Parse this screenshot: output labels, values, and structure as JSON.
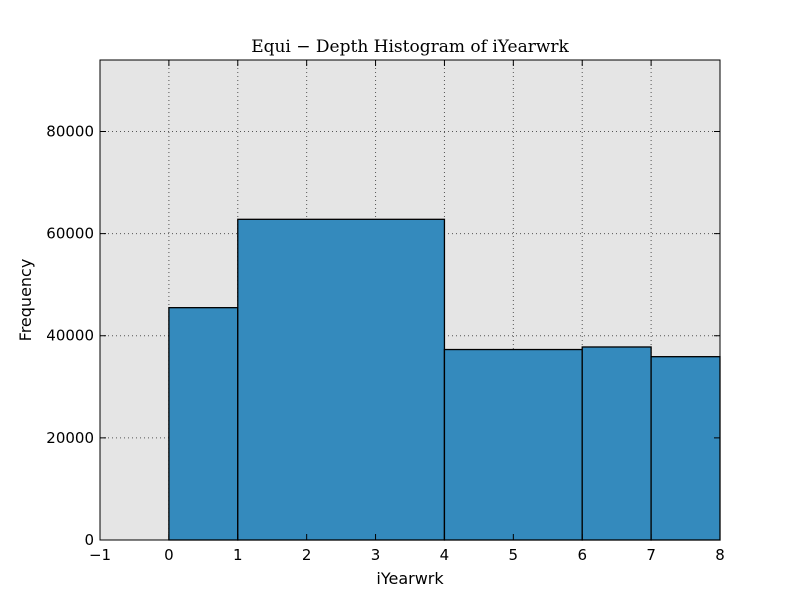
{
  "chart_data": {
    "type": "bar",
    "title": "Equi − Depth Histogram of iYearwrk",
    "xlabel": "iYearwrk",
    "ylabel": "Frequency",
    "xlim": [
      -1,
      8
    ],
    "ylim": [
      0,
      94000
    ],
    "grid": true,
    "x_ticks": [
      -1,
      0,
      1,
      2,
      3,
      4,
      5,
      6,
      7,
      8
    ],
    "x_tick_labels": [
      "−1",
      "0",
      "1",
      "2",
      "3",
      "4",
      "5",
      "6",
      "7",
      "8"
    ],
    "y_ticks": [
      0,
      20000,
      40000,
      60000,
      80000
    ],
    "y_tick_labels": [
      "0",
      "20000",
      "40000",
      "60000",
      "80000"
    ],
    "bins": [
      {
        "x0": 0,
        "x1": 1,
        "value": 45500
      },
      {
        "x0": 1,
        "x1": 4,
        "value": 62800
      },
      {
        "x0": 4,
        "x1": 6,
        "value": 37300
      },
      {
        "x0": 6,
        "x1": 7,
        "value": 37800
      },
      {
        "x0": 7,
        "x1": 8,
        "value": 35900
      }
    ],
    "colors": {
      "bar_fill": "#348abd",
      "bar_edge": "#000000",
      "plot_bg": "#e5e5e5",
      "grid": "#555555"
    }
  }
}
